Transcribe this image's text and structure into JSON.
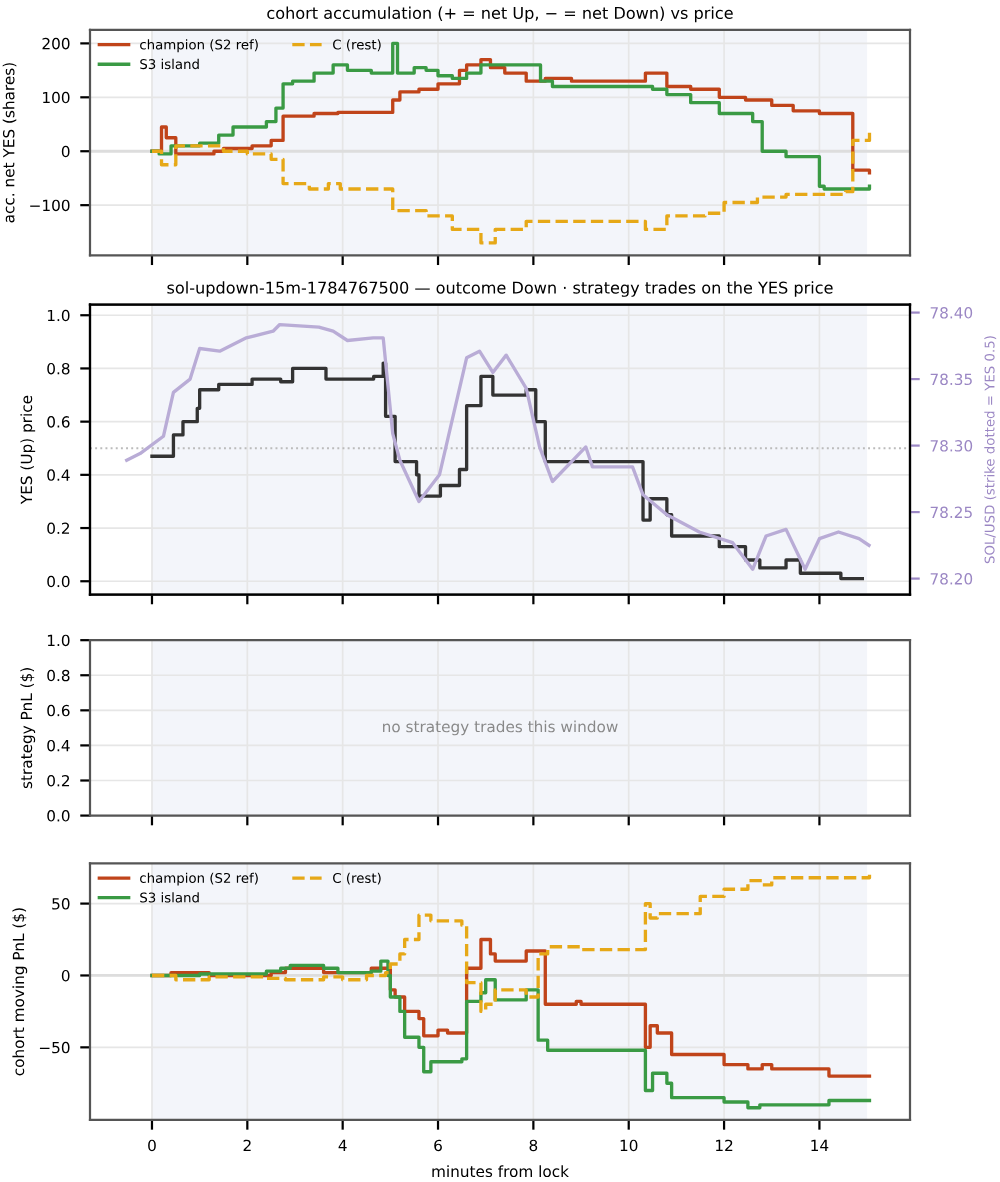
{
  "chart_data": [
    {
      "type": "step",
      "title": "cohort accumulation (+ = net Up, − = net Down) vs price",
      "ylabel": "acc. net YES (shares)",
      "xlim": [
        -1.3,
        15.9
      ],
      "xticks": [
        0,
        2,
        4,
        6,
        8,
        10,
        12,
        14
      ],
      "ylim": [
        -193,
        225
      ],
      "yticks": [
        {
          "value": -100,
          "label": "−100"
        },
        0,
        100,
        200
      ],
      "tick_labels": "y",
      "grid": true,
      "legend": "top left",
      "bands": [
        {
          "axis": "x",
          "from": 0,
          "to": 15,
          "color": "#f3f5fa"
        }
      ],
      "ref_lines": [
        {
          "axis": "y",
          "value": 0,
          "color": "#dddddd",
          "line_style": "solid"
        }
      ],
      "series": [
        {
          "name": "champion (S2 ref)",
          "color": "#c0441a",
          "line_style": "solid",
          "x": [
            0,
            0.2,
            0.3,
            0.5,
            1.3,
            1.5,
            2.1,
            2.5,
            2.75,
            3.4,
            3.9,
            4.9,
            5.05,
            5.2,
            5.6,
            6.0,
            6.45,
            6.6,
            6.9,
            7.1,
            7.4,
            7.85,
            8.25,
            8.8,
            10.35,
            10.8,
            11.3,
            11.9,
            12.45,
            13.0,
            13.45,
            14.0,
            14.7,
            15.05
          ],
          "values": [
            0,
            45,
            25,
            -5,
            0,
            5,
            10,
            20,
            65,
            70,
            72,
            72,
            95,
            110,
            115,
            125,
            150,
            160,
            170,
            155,
            145,
            130,
            135,
            130,
            145,
            120,
            115,
            100,
            95,
            85,
            75,
            70,
            -35,
            -40
          ]
        },
        {
          "name": "S3 island",
          "color": "#3a9a44",
          "line_style": "solid",
          "x": [
            0,
            0.15,
            0.4,
            1.0,
            1.4,
            1.7,
            2.4,
            2.6,
            2.75,
            2.95,
            3.4,
            3.8,
            4.1,
            4.6,
            5.05,
            5.15,
            5.5,
            5.75,
            6.0,
            6.3,
            6.6,
            6.9,
            7.85,
            8.15,
            8.4,
            10.5,
            10.8,
            11.3,
            11.9,
            12.6,
            12.8,
            13.3,
            14.0,
            14.1,
            15.05
          ],
          "values": [
            0,
            -5,
            10,
            15,
            30,
            45,
            55,
            80,
            125,
            130,
            145,
            160,
            150,
            145,
            200,
            145,
            155,
            150,
            140,
            135,
            145,
            160,
            160,
            130,
            120,
            115,
            105,
            90,
            70,
            55,
            0,
            -10,
            -65,
            -70,
            -65
          ]
        },
        {
          "name": "C (rest)",
          "color": "#e6a817",
          "line_style": "dashed",
          "x": [
            0,
            0.2,
            0.5,
            1.5,
            2.0,
            2.5,
            2.75,
            3.3,
            3.7,
            3.95,
            4.9,
            5.05,
            5.75,
            6.3,
            6.9,
            7.2,
            7.85,
            8.4,
            10.35,
            10.8,
            11.6,
            12.0,
            12.7,
            13.3,
            14.0,
            14.55,
            14.7,
            15.05
          ],
          "values": [
            0,
            -25,
            10,
            0,
            -5,
            -15,
            -60,
            -70,
            -60,
            -70,
            -70,
            -110,
            -120,
            -145,
            -170,
            -145,
            -130,
            -130,
            -145,
            -120,
            -115,
            -95,
            -85,
            -80,
            -80,
            -75,
            20,
            40
          ]
        }
      ]
    },
    {
      "type": "step",
      "title": "sol-updown-15m-1784767500 — outcome Down · strategy trades on the YES price",
      "ylabel": "YES (Up) price",
      "y2label": "SOL/USD (strike dotted = YES 0.5)",
      "xlim": [
        -1.3,
        15.9
      ],
      "xticks": [
        0,
        2,
        4,
        6,
        8,
        10,
        12,
        14
      ],
      "ylim": [
        -0.05,
        1.04
      ],
      "yticks": [
        {
          "value": 0,
          "label": "0.0"
        },
        0.2,
        0.4,
        0.6,
        0.8,
        {
          "value": 1,
          "label": "1.0"
        }
      ],
      "y2lim": [
        78.188,
        78.406
      ],
      "y2ticks": [
        {
          "value": 78.2,
          "label": "78.20"
        },
        78.25,
        {
          "value": 78.3,
          "label": "78.30"
        },
        78.35,
        {
          "value": 78.4,
          "label": "78.40"
        }
      ],
      "tick_labels": "y",
      "grid": true,
      "bands": [
        {
          "axis": "x",
          "from": 0,
          "to": 15,
          "color": "#f3f5fa"
        }
      ],
      "ref_lines": [
        {
          "axis": "y",
          "value": 0.5,
          "color": "#bbbbbb",
          "line_style": "dotted"
        }
      ],
      "series": [
        {
          "type": "line",
          "axis": "y2",
          "color": "#b9acd6",
          "x": [
            -0.53,
            -0.25,
            0.24,
            0.45,
            0.8,
            1.0,
            1.42,
            1.98,
            2.54,
            2.68,
            3.5,
            3.8,
            4.1,
            4.64,
            4.85,
            5.05,
            5.2,
            5.6,
            6.03,
            6.6,
            6.87,
            7.15,
            7.43,
            7.85,
            8.13,
            8.4,
            9.1,
            9.24,
            10.08,
            10.3,
            10.8,
            11.48,
            12.18,
            12.6,
            12.88,
            13.3,
            13.7,
            14.0,
            14.4,
            14.83,
            15.04
          ],
          "values": [
            78.289,
            78.294,
            78.307,
            78.34,
            78.35,
            78.373,
            78.371,
            78.381,
            78.386,
            78.391,
            78.389,
            78.386,
            78.379,
            78.381,
            78.381,
            78.309,
            78.289,
            78.258,
            78.278,
            78.366,
            78.371,
            78.355,
            78.368,
            78.343,
            78.299,
            78.273,
            78.299,
            78.284,
            78.284,
            78.263,
            78.248,
            78.235,
            78.227,
            78.207,
            78.232,
            78.237,
            78.207,
            78.23,
            78.235,
            78.23,
            78.225
          ]
        },
        {
          "color": "#333333",
          "x": [
            0,
            0.45,
            0.65,
            0.95,
            1.0,
            1.4,
            2.1,
            2.7,
            2.95,
            3.45,
            3.65,
            4.1,
            4.65,
            4.85,
            4.9,
            5.1,
            5.55,
            5.6,
            6.05,
            6.45,
            6.6,
            6.9,
            7.15,
            7.85,
            8.05,
            8.25,
            8.7,
            10.3,
            10.45,
            10.8,
            10.9,
            11.6,
            11.9,
            12.45,
            12.75,
            13.3,
            13.6,
            14.45,
            14.9
          ],
          "values": [
            0.47,
            0.55,
            0.6,
            0.65,
            0.72,
            0.74,
            0.76,
            0.75,
            0.8,
            0.8,
            0.76,
            0.76,
            0.77,
            0.82,
            0.62,
            0.45,
            0.4,
            0.32,
            0.36,
            0.42,
            0.66,
            0.77,
            0.7,
            0.72,
            0.6,
            0.45,
            0.45,
            0.23,
            0.31,
            0.25,
            0.17,
            0.17,
            0.13,
            0.08,
            0.05,
            0.08,
            0.03,
            0.01,
            0.01
          ]
        }
      ]
    },
    {
      "type": "line",
      "ylabel": "strategy PnL ($)",
      "xlim": [
        -1.3,
        15.9
      ],
      "xticks": [
        0,
        2,
        4,
        6,
        8,
        10,
        12,
        14
      ],
      "ylim": [
        0,
        1
      ],
      "yticks": [
        {
          "value": 0,
          "label": "0.0"
        },
        0.2,
        0.4,
        0.6,
        0.8,
        {
          "value": 1,
          "label": "1.0"
        }
      ],
      "tick_labels": "y",
      "grid": true,
      "bands": [
        {
          "axis": "x",
          "from": 0,
          "to": 15,
          "color": "#f3f5fa"
        }
      ],
      "annotations": [
        "no strategy trades this window"
      ]
    },
    {
      "type": "step",
      "xlabel": "minutes from lock",
      "ylabel": "cohort moving PnL ($)",
      "xlim": [
        -1.3,
        15.9
      ],
      "xticks": [
        0,
        2,
        4,
        6,
        8,
        10,
        12,
        14
      ],
      "ylim": [
        -100.5,
        78
      ],
      "yticks": [
        {
          "value": -50,
          "label": "−50"
        },
        0,
        50
      ],
      "grid": true,
      "legend": "top left",
      "bands": [
        {
          "axis": "x",
          "from": 0,
          "to": 15,
          "color": "#f3f5fa"
        }
      ],
      "ref_lines": [
        {
          "axis": "y",
          "value": 0,
          "color": "#dddddd",
          "line_style": "solid"
        }
      ],
      "series": [
        {
          "name": "champion (S2 ref)",
          "color": "#c0441a",
          "line_style": "solid",
          "x": [
            0,
            0.4,
            1.2,
            2.5,
            2.8,
            3.6,
            4.6,
            5.0,
            5.1,
            5.3,
            5.6,
            5.7,
            6.0,
            6.2,
            6.6,
            6.9,
            7.1,
            7.2,
            7.85,
            8.25,
            8.9,
            9.0,
            10.35,
            10.45,
            10.6,
            10.9,
            12.0,
            12.5,
            12.8,
            13.0,
            14.2,
            15.05
          ],
          "values": [
            0,
            2,
            0,
            2,
            5,
            2,
            5,
            -10,
            -15,
            -25,
            -30,
            -42,
            -38,
            -40,
            5,
            25,
            15,
            10,
            17,
            -20,
            -18,
            -20,
            -50,
            -35,
            -40,
            -55,
            -62,
            -65,
            -62,
            -65,
            -70,
            -70
          ]
        },
        {
          "name": "S3 island",
          "color": "#3a9a44",
          "line_style": "solid",
          "x": [
            0,
            1.0,
            2.4,
            2.7,
            2.9,
            3.6,
            3.9,
            4.6,
            4.8,
            4.95,
            5.0,
            5.2,
            5.3,
            5.6,
            5.7,
            5.85,
            6.5,
            6.6,
            6.9,
            7.0,
            7.2,
            7.85,
            8.1,
            8.3,
            10.35,
            10.5,
            10.8,
            10.9,
            12.0,
            12.5,
            12.75,
            14.2,
            15.05
          ],
          "values": [
            0,
            1,
            3,
            5,
            7,
            5,
            2,
            3,
            10,
            0,
            -15,
            -25,
            -43,
            -50,
            -67,
            -60,
            -58,
            -18,
            -12,
            -3,
            -17,
            -10,
            -45,
            -52,
            -80,
            -68,
            -75,
            -85,
            -88,
            -92,
            -90,
            -87,
            -87
          ]
        },
        {
          "name": "C (rest)",
          "color": "#e6a817",
          "line_style": "dashed",
          "x": [
            0,
            0.5,
            1.2,
            2.4,
            2.8,
            3.6,
            4.0,
            4.5,
            4.9,
            5.0,
            5.2,
            5.3,
            5.6,
            5.85,
            6.5,
            6.6,
            6.9,
            7.0,
            7.2,
            7.85,
            8.1,
            8.3,
            9.0,
            10.35,
            10.45,
            10.6,
            11.5,
            12.0,
            12.5,
            12.8,
            13.0,
            15.05
          ],
          "values": [
            0,
            -3,
            -1,
            -2,
            -3,
            -1,
            -3,
            0,
            2,
            8,
            15,
            25,
            42,
            38,
            35,
            -5,
            -25,
            -20,
            -10,
            -15,
            15,
            20,
            18,
            50,
            40,
            43,
            55,
            60,
            66,
            63,
            68,
            70
          ]
        }
      ]
    }
  ]
}
